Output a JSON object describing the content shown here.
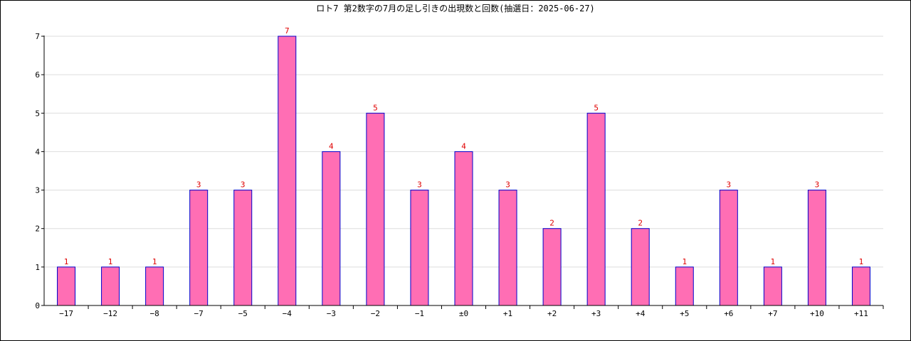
{
  "colors": {
    "bar_fill": "#FF6EB4",
    "bar_stroke": "#0000CC",
    "data_label": "#E00000",
    "grid": "#DDDDDD",
    "axis": "#000000"
  },
  "chart_data": {
    "type": "bar",
    "title": "ロト7 第2数字の7月の足し引きの出現数と回数(抽選日：2025-06-27)",
    "xlabel": "",
    "ylabel": "",
    "ylim": [
      0,
      7
    ],
    "yticks": [
      "0",
      "1",
      "2",
      "3",
      "4",
      "5",
      "6",
      "7"
    ],
    "grid": true,
    "legend": "none",
    "categories": [
      "−17",
      "−12",
      "−8",
      "−7",
      "−5",
      "−4",
      "−3",
      "−2",
      "−1",
      "±0",
      "+1",
      "+2",
      "+3",
      "+4",
      "+5",
      "+6",
      "+7",
      "+10",
      "+11"
    ],
    "values": [
      1,
      1,
      1,
      3,
      3,
      7,
      4,
      5,
      3,
      4,
      3,
      2,
      5,
      2,
      1,
      3,
      1,
      3,
      1
    ]
  }
}
